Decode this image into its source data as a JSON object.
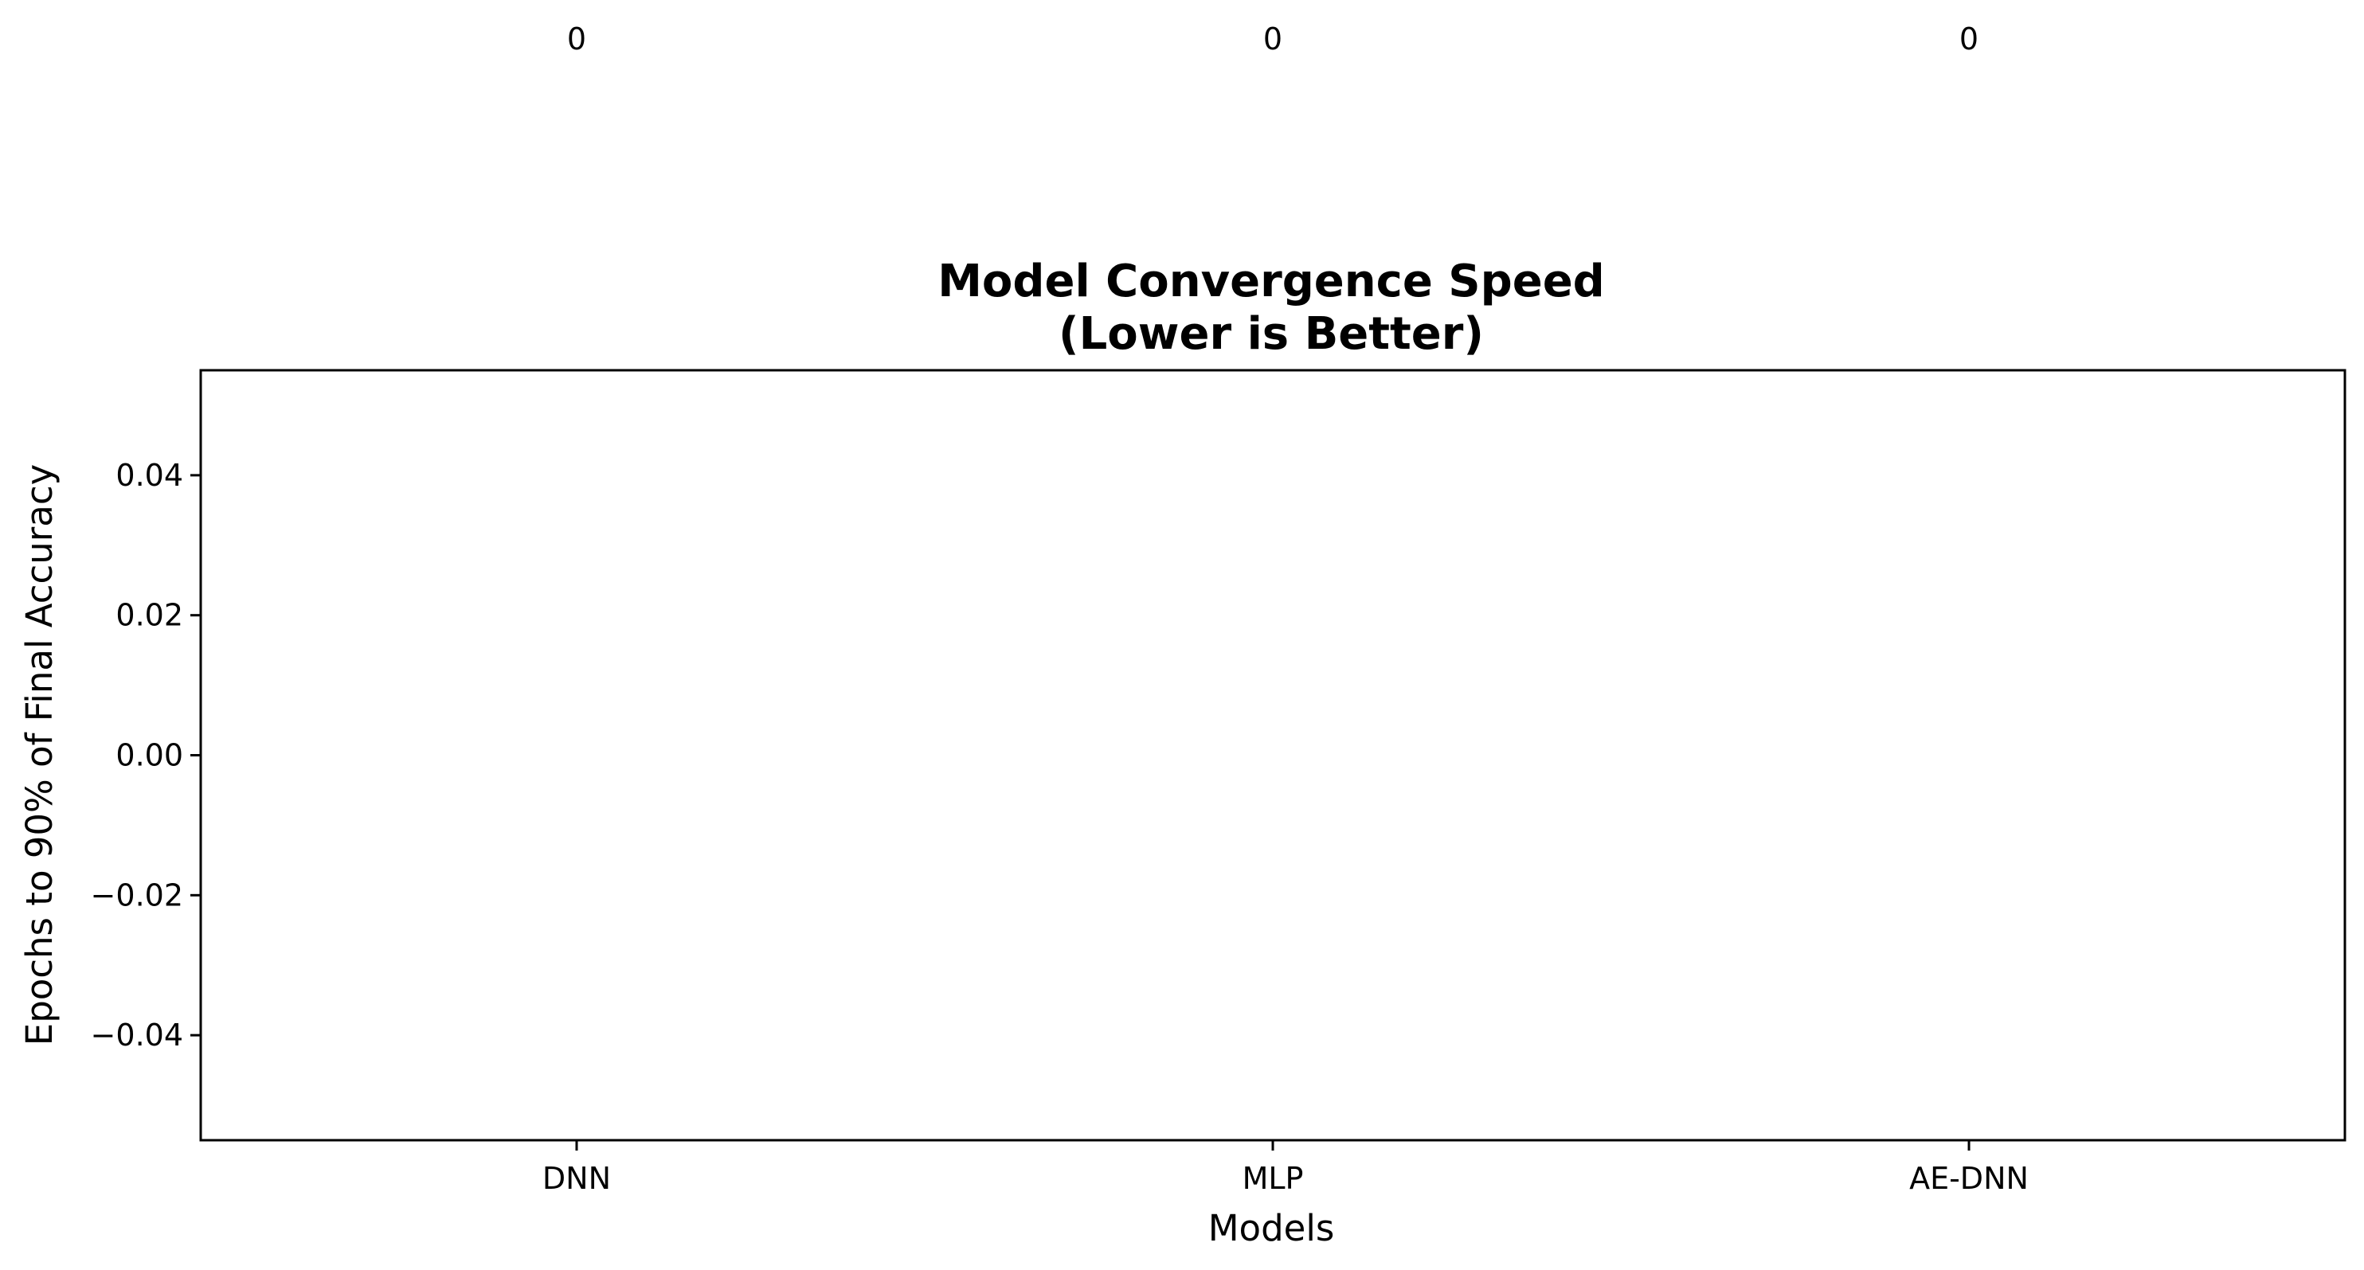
{
  "chart_data": {
    "type": "bar",
    "title_lines": [
      "Model Convergence Speed",
      "(Lower is Better)"
    ],
    "xlabel": "Models",
    "ylabel": "Epochs to 90% of Final Accuracy",
    "categories": [
      "DNN",
      "MLP",
      "AE-DNN"
    ],
    "values": [
      0,
      0,
      0
    ],
    "data_labels": [
      "0",
      "0",
      "0"
    ],
    "ylim": [
      -0.055,
      0.055
    ],
    "yticks": [
      0.04,
      0.02,
      0.0,
      -0.02,
      -0.04
    ],
    "ytick_labels": [
      "0.04",
      "0.02",
      "0.00",
      "−0.02",
      "−0.04"
    ],
    "grid": false,
    "legend": "none",
    "colors": {
      "axis": "#000000",
      "text": "#000000",
      "background": "#ffffff"
    }
  }
}
